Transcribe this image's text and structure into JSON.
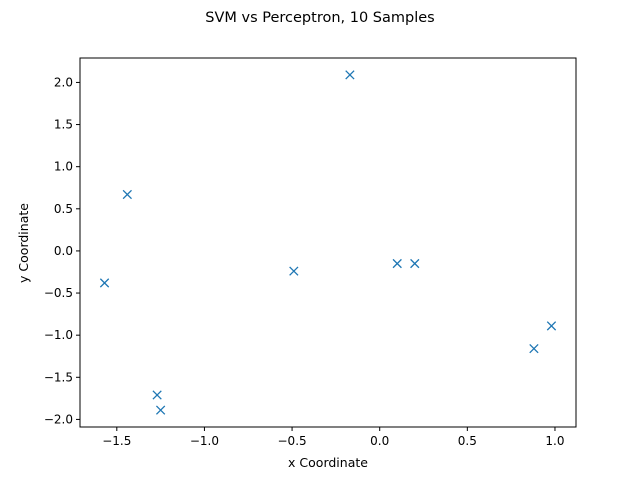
{
  "chart_data": {
    "type": "scatter",
    "title": "SVM vs Perceptron, 10 Samples",
    "xlabel": "x Coordinate",
    "ylabel": "y Coordinate",
    "xlim": [
      -1.71,
      1.12
    ],
    "ylim": [
      -2.09,
      2.29
    ],
    "x_ticks": [
      {
        "value": -1.5,
        "label": "−1.5"
      },
      {
        "value": -1.0,
        "label": "−1.0"
      },
      {
        "value": -0.5,
        "label": "−0.5"
      },
      {
        "value": 0.0,
        "label": "0.0"
      },
      {
        "value": 0.5,
        "label": "0.5"
      },
      {
        "value": 1.0,
        "label": "1.0"
      }
    ],
    "y_ticks": [
      {
        "value": -2.0,
        "label": "−2.0"
      },
      {
        "value": -1.5,
        "label": "−1.5"
      },
      {
        "value": -1.0,
        "label": "−1.0"
      },
      {
        "value": -0.5,
        "label": "−0.5"
      },
      {
        "value": 0.0,
        "label": "0.0"
      },
      {
        "value": 0.5,
        "label": "0.5"
      },
      {
        "value": 1.0,
        "label": "1.0"
      },
      {
        "value": 1.5,
        "label": "1.5"
      },
      {
        "value": 2.0,
        "label": "2.0"
      }
    ],
    "grid": false,
    "marker": "x",
    "color": "#1f77b4",
    "series": [
      {
        "points": [
          {
            "x": -0.17,
            "y": 2.09
          },
          {
            "x": -1.44,
            "y": 0.67
          },
          {
            "x": -1.57,
            "y": -0.38
          },
          {
            "x": -0.49,
            "y": -0.24
          },
          {
            "x": 0.1,
            "y": -0.15
          },
          {
            "x": 0.2,
            "y": -0.15
          },
          {
            "x": 0.98,
            "y": -0.89
          },
          {
            "x": 0.88,
            "y": -1.16
          },
          {
            "x": -1.27,
            "y": -1.71
          },
          {
            "x": -1.25,
            "y": -1.89
          }
        ]
      }
    ]
  }
}
